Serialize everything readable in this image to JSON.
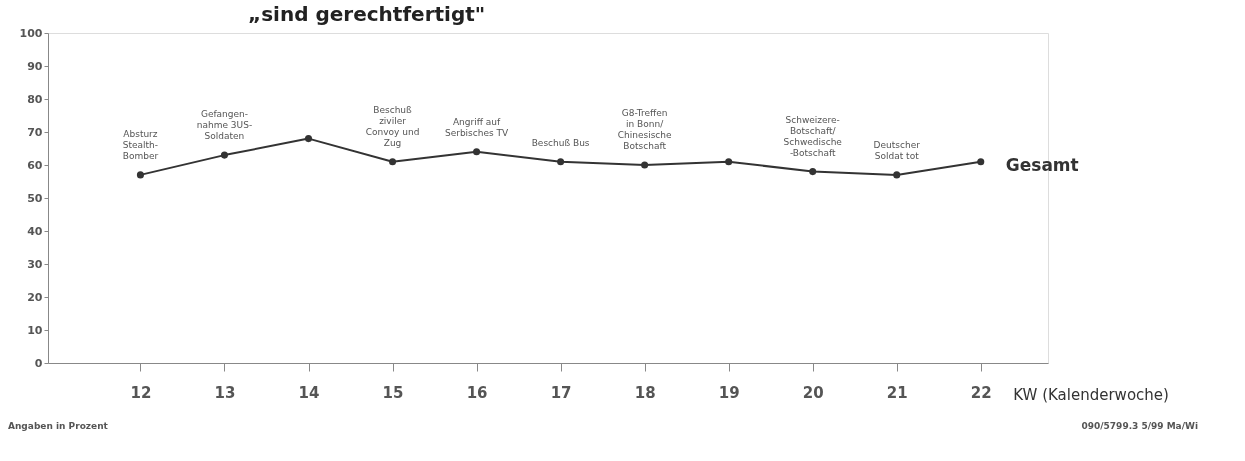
{
  "chart_data": {
    "type": "line",
    "title": "„sind gerechtfertigt\"",
    "xlabel": "KW (Kalenderwoche)",
    "x": [
      12,
      13,
      14,
      15,
      16,
      17,
      18,
      19,
      20,
      21,
      22
    ],
    "series": [
      {
        "name": "Gesamt",
        "color": "#333333",
        "values": [
          57,
          63,
          68,
          61,
          64,
          61,
          60,
          61,
          58,
          57,
          61
        ]
      }
    ],
    "xlim": [
      10.9,
      22.8
    ],
    "xticks": [
      12,
      13,
      14,
      15,
      16,
      17,
      18,
      19,
      20,
      21,
      22
    ],
    "ylim": [
      0,
      100
    ],
    "yticks": [
      0,
      10,
      20,
      30,
      40,
      50,
      60,
      70,
      80,
      90,
      100
    ],
    "grid": false,
    "marker": "circle",
    "line_style": "solid",
    "annotations": [
      {
        "text": "Absturz\nStealth-\nBomber",
        "x": 12,
        "y": 57
      },
      {
        "text": "Gefangen-\nnahme 3US-\nSoldaten",
        "x": 13,
        "y": 63
      },
      {
        "text": "Beschuß\nziviler\nConvoy und\nZug",
        "x": 15,
        "y": 61
      },
      {
        "text": "Angriff auf\nSerbisches TV",
        "x": 16,
        "y": 64
      },
      {
        "text": "Beschuß Bus",
        "x": 17,
        "y": 61
      },
      {
        "text": "G8-Treffen\nin Bonn/\nChinesische\nBotschaft",
        "x": 18,
        "y": 60
      },
      {
        "text": "Schweizere-\nBotschaft/\nSchwedische\n-Botschaft",
        "x": 20,
        "y": 58
      },
      {
        "text": "Deutscher\nSoldat tot",
        "x": 21,
        "y": 57
      },
      "Angaben in Prozent",
      "090/5799.3 5/99 Ma/Wi"
    ]
  }
}
